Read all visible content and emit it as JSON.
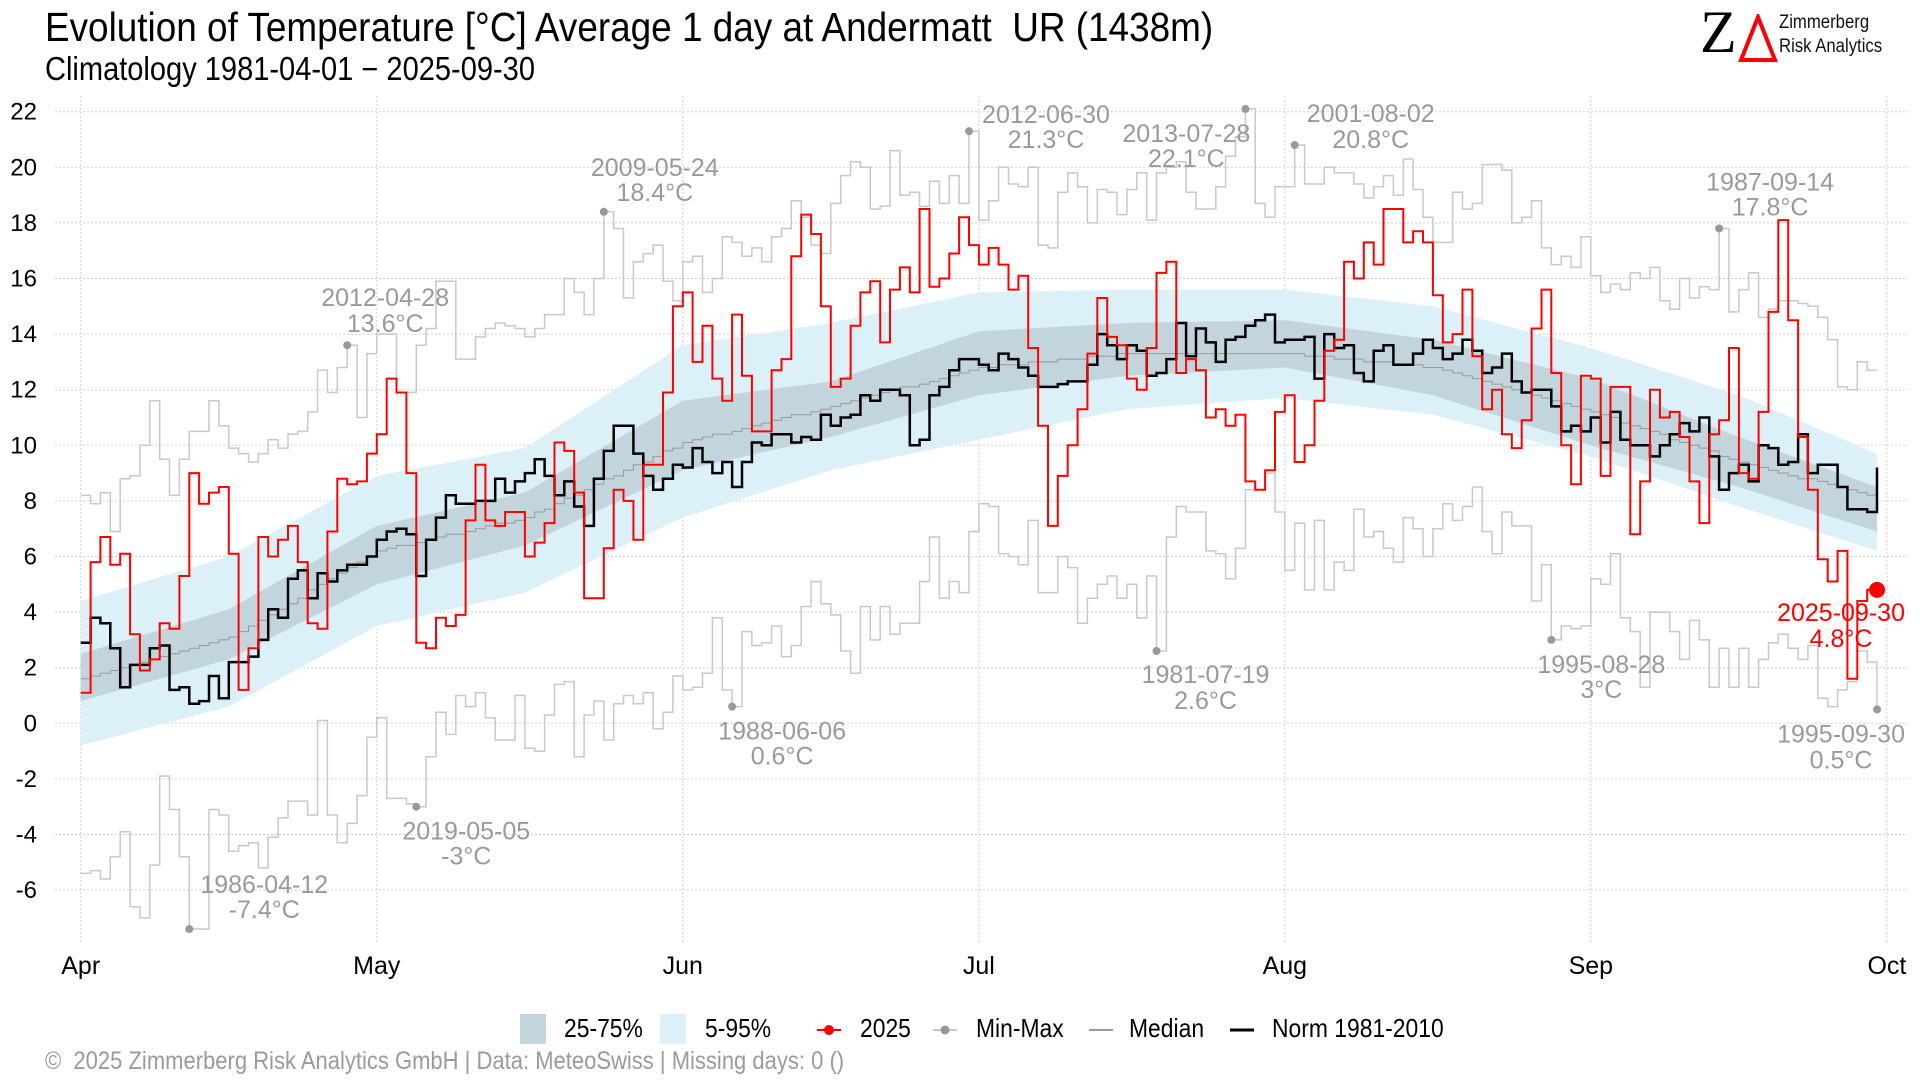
{
  "header": {
    "title": "Evolution of Temperature [°C] Average 1 day at Andermatt  UR (1438m)",
    "subtitle": "Climatology 1981-04-01 − 2025-09-30"
  },
  "logo": {
    "mark_z": "Z",
    "mark_delta": "Δ",
    "line1": "Zimmerberg",
    "line2": "Risk Analytics"
  },
  "legend": {
    "iqr": "25-75%",
    "p5_95": "5-95%",
    "current": "2025",
    "minmax": "Min-Max",
    "median": "Median",
    "norm": "Norm 1981-2010"
  },
  "footer": "©  2025 Zimmerberg Risk Analytics GmbH | Data: MeteoSwiss | Missing days: 0 ()",
  "colors": {
    "current": "#ff0000",
    "norm": "#000000",
    "minmax": "#c8c8c8",
    "minmax_dot": "#999999",
    "median": "#999999",
    "band_iqr": "#c3d5dc",
    "band_90": "#dcf0f8"
  },
  "chart_data": {
    "type": "line",
    "title": "Evolution of Temperature [°C] Average 1 day at Andermatt  UR (1438m)",
    "xlabel": "",
    "ylabel": "",
    "x_start": "04-01",
    "x_end": "09-30",
    "x_ticks": [
      "Apr",
      "May",
      "Jun",
      "Jul",
      "Aug",
      "Sep",
      "Oct"
    ],
    "y_ticks": [
      22,
      20,
      18,
      16,
      14,
      12,
      10,
      8,
      6,
      4,
      2,
      0,
      -2,
      -4,
      -6
    ],
    "ylim": [
      -7.9,
      22.6
    ],
    "grid": true,
    "legend_position": "bottom",
    "series": [
      {
        "name": "Max",
        "values": [
          8.2,
          7.9,
          8.3,
          6.9,
          8.8,
          8.9,
          10.0,
          11.6,
          9.5,
          8.2,
          9.5,
          10.5,
          10.5,
          11.6,
          10.7,
          9.9,
          9.7,
          9.4,
          9.7,
          10.2,
          9.9,
          10.4,
          10.5,
          11.2,
          12.7,
          11.9,
          12.8,
          13.6,
          11.0,
          13.3,
          14.0,
          14.0,
          11.9,
          11.9,
          13.6,
          14.2,
          15.9,
          15.9,
          13.1,
          13.1,
          13.9,
          14.2,
          14.4,
          14.3,
          14.2,
          13.9,
          14.2,
          14.7,
          14.7,
          16.0,
          15.5,
          14.7,
          16.0,
          18.4,
          17.8,
          15.3,
          16.6,
          16.9,
          17.2,
          15.9,
          15.2,
          16.6,
          16.8,
          15.5,
          16.0,
          17.5,
          17.3,
          16.8,
          17.1,
          16.6,
          17.5,
          17.8,
          18.8,
          18.2,
          17.2,
          16.9,
          18.7,
          19.7,
          20.2,
          20.0,
          18.5,
          18.6,
          20.6,
          19.0,
          19.1,
          18.6,
          19.5,
          18.7,
          19.7,
          18.7,
          21.3,
          18.1,
          18.8,
          20.0,
          19.4,
          19.3,
          20.0,
          17.2,
          17.1,
          19.1,
          19.8,
          19.3,
          18.0,
          19.2,
          19.1,
          18.3,
          19.2,
          19.8,
          18.1,
          19.8,
          20.0,
          20.2,
          19.1,
          18.5,
          18.5,
          19.3,
          20.4,
          21.1,
          22.1,
          18.7,
          18.2,
          19.3,
          19.3,
          20.8,
          19.4,
          19.4,
          20.0,
          19.8,
          19.8,
          19.4,
          18.9,
          19.3,
          19.7,
          19.0,
          20.3,
          19.2,
          18.2,
          17.3,
          17.3,
          19.1,
          18.5,
          18.7,
          20.1,
          20.1,
          19.9,
          18.0,
          18.2,
          18.8,
          17.1,
          16.5,
          16.8,
          16.4,
          17.5,
          16.1,
          15.5,
          15.8,
          15.6,
          16.2,
          16.0,
          16.4,
          15.2,
          14.9,
          16.0,
          15.3,
          15.7,
          15.6,
          17.8,
          14.8,
          15.6,
          16.2,
          14.6,
          14.9,
          15.2,
          15.2,
          15.1,
          15.0,
          14.6,
          13.8,
          12.1,
          12.0,
          13.0,
          12.7,
          12.7
        ]
      },
      {
        "name": "Min",
        "values": [
          -5.4,
          -5.3,
          -5.6,
          -4.8,
          -3.9,
          -6.6,
          -7.0,
          -5.1,
          -1.9,
          -3.1,
          -4.8,
          -7.4,
          -7.4,
          -3.1,
          -3.3,
          -4.6,
          -4.4,
          -4.3,
          -5.2,
          -4.1,
          -3.4,
          -2.8,
          -2.8,
          -3.3,
          0.1,
          -3.3,
          -4.3,
          -3.6,
          -2.6,
          -0.5,
          0.2,
          -2.7,
          -2.7,
          -2.9,
          -3.0,
          -1.2,
          0.4,
          -0.4,
          1.0,
          0.6,
          1.1,
          0.2,
          -0.6,
          -0.6,
          1.0,
          -0.9,
          -1.0,
          0.3,
          1.4,
          1.5,
          -1.2,
          0.3,
          0.8,
          -0.6,
          0.7,
          1.0,
          0.7,
          1.1,
          -0.2,
          0.4,
          1.7,
          1.2,
          1.3,
          1.8,
          3.8,
          1.2,
          0.6,
          3.3,
          2.8,
          2.9,
          3.5,
          2.4,
          2.8,
          4.2,
          5.1,
          4.3,
          3.9,
          2.6,
          1.8,
          4.2,
          3.0,
          4.2,
          3.2,
          3.6,
          3.6,
          5.1,
          6.7,
          4.5,
          5.1,
          4.7,
          6.9,
          7.9,
          7.8,
          6.1,
          6.0,
          5.7,
          7.3,
          4.7,
          4.7,
          6.0,
          5.6,
          3.6,
          4.5,
          5.0,
          5.3,
          4.5,
          5.0,
          3.8,
          5.3,
          2.6,
          6.7,
          7.8,
          7.6,
          7.6,
          6.2,
          6.1,
          5.2,
          6.3,
          8.4,
          8.4,
          9.0,
          7.6,
          5.5,
          7.2,
          4.8,
          7.3,
          4.8,
          5.8,
          5.5,
          7.7,
          6.7,
          6.9,
          6.3,
          5.8,
          7.4,
          7.0,
          6.0,
          7.0,
          7.9,
          7.3,
          7.8,
          8.5,
          6.9,
          6.1,
          7.6,
          7.1,
          7.1,
          4.4,
          5.7,
          3.0,
          3.5,
          3.4,
          3.5,
          5.2,
          5.0,
          6.1,
          3.8,
          3.3,
          1.3,
          4.0,
          4.0,
          3.3,
          2.3,
          3.7,
          3.0,
          1.3,
          2.7,
          1.3,
          2.7,
          1.3,
          2.3,
          2.9,
          3.2,
          2.7,
          2.3,
          2.8,
          0.9,
          0.6,
          1.2,
          1.5,
          2.6,
          2.2,
          0.5
        ]
      },
      {
        "name": "Norm 1981-2010",
        "values": [
          2.9,
          3.8,
          3.6,
          2.7,
          1.3,
          2.1,
          2.1,
          2.7,
          2.8,
          1.2,
          1.3,
          0.7,
          0.8,
          1.7,
          0.9,
          2.2,
          2.2,
          2.4,
          3.0,
          4.1,
          3.8,
          5.2,
          5.5,
          4.5,
          5.4,
          5.1,
          5.5,
          5.7,
          5.7,
          6.0,
          6.6,
          6.9,
          7.0,
          6.8,
          5.3,
          6.6,
          7.4,
          8.2,
          7.9,
          7.9,
          8.0,
          8.0,
          8.8,
          8.3,
          8.7,
          9.0,
          9.5,
          8.9,
          8.2,
          8.7,
          7.8,
          7.1,
          8.8,
          9.8,
          10.7,
          10.7,
          9.7,
          8.9,
          8.4,
          8.8,
          9.3,
          9.2,
          9.9,
          9.4,
          9.0,
          9.4,
          8.5,
          9.4,
          10.1,
          10.0,
          10.4,
          10.4,
          10.1,
          10.3,
          10.2,
          11.1,
          10.7,
          11.0,
          11.1,
          11.8,
          11.6,
          12.0,
          12.0,
          11.8,
          10.0,
          10.2,
          11.8,
          12.1,
          12.7,
          13.1,
          13.1,
          12.9,
          12.7,
          13.3,
          13.1,
          12.8,
          12.5,
          12.1,
          12.1,
          12.2,
          12.3,
          12.3,
          12.9,
          14.0,
          13.6,
          13.1,
          13.6,
          13.4,
          12.5,
          12.6,
          13.1,
          14.4,
          13.2,
          14.2,
          13.7,
          13.0,
          13.8,
          13.9,
          14.3,
          14.5,
          14.7,
          13.7,
          13.8,
          13.8,
          13.9,
          12.4,
          14.0,
          13.5,
          13.6,
          12.6,
          12.3,
          13.4,
          13.6,
          12.9,
          12.9,
          13.3,
          13.8,
          13.5,
          13.1,
          13.3,
          13.8,
          13.4,
          12.6,
          12.8,
          13.3,
          12.3,
          11.9,
          12.0,
          12.0,
          11.4,
          10.5,
          10.7,
          10.5,
          11.0,
          10.1,
          11.2,
          10.2,
          10.0,
          10.0,
          9.6,
          10.0,
          10.4,
          10.8,
          10.5,
          11.0,
          9.6,
          8.4,
          9.0,
          9.3,
          8.7,
          10.0,
          9.9,
          9.3,
          9.4,
          10.4,
          9.0,
          9.3,
          9.3,
          8.5,
          7.7,
          7.7,
          7.6,
          9.2
        ]
      },
      {
        "name": "2025",
        "values": [
          1.1,
          5.8,
          6.7,
          5.7,
          6.1,
          3.2,
          1.9,
          2.3,
          3.6,
          3.4,
          5.3,
          9.0,
          7.9,
          8.3,
          8.5,
          6.1,
          1.2,
          2.7,
          6.7,
          6.0,
          6.6,
          7.1,
          5.8,
          3.6,
          3.4,
          6.9,
          8.8,
          8.6,
          8.7,
          9.7,
          10.4,
          12.4,
          11.9,
          9.0,
          2.9,
          2.7,
          3.8,
          3.5,
          3.9,
          7.3,
          9.3,
          7.3,
          7.1,
          7.6,
          7.6,
          6.0,
          6.5,
          7.2,
          10.1,
          9.8,
          8.3,
          4.5,
          4.5,
          6.3,
          8.4,
          8.0,
          6.6,
          9.3,
          9.3,
          11.9,
          15.0,
          15.5,
          13.0,
          14.3,
          12.4,
          11.6,
          14.7,
          12.5,
          10.5,
          10.5,
          12.7,
          13.1,
          16.8,
          18.3,
          17.6,
          15.0,
          12.1,
          12.4,
          14.3,
          15.5,
          15.9,
          13.7,
          15.6,
          16.4,
          15.5,
          18.5,
          15.7,
          16.0,
          16.9,
          18.2,
          17.2,
          16.5,
          17.1,
          16.5,
          15.6,
          16.1,
          13.5,
          10.7,
          7.1,
          8.9,
          10.0,
          11.3,
          13.3,
          15.3,
          13.9,
          13.6,
          12.4,
          12.0,
          13.5,
          16.2,
          16.6,
          12.6,
          13.1,
          12.7,
          11.0,
          11.3,
          10.7,
          11.1,
          8.7,
          8.4,
          9.1,
          11.2,
          11.8,
          9.4,
          10.0,
          11.6,
          13.4,
          13.8,
          16.6,
          16.0,
          17.3,
          16.5,
          18.5,
          18.5,
          17.3,
          17.7,
          17.3,
          15.4,
          13.7,
          14.0,
          15.6,
          13.2,
          11.3,
          12.0,
          10.4,
          9.9,
          10.9,
          14.2,
          15.6,
          12.6,
          10.0,
          8.6,
          12.5,
          12.4,
          8.9,
          12.1,
          12.1,
          6.8,
          8.7,
          12.0,
          11.0,
          11.2,
          10.3,
          8.7,
          7.2,
          10.4,
          10.9,
          13.5,
          9.0,
          8.8,
          11.2,
          14.8,
          18.1,
          14.5,
          10.3,
          8.4,
          5.9,
          5.1,
          6.2,
          1.6,
          4.4,
          4.8,
          4.8
        ]
      }
    ],
    "bands": {
      "anchor_dates": [
        "04-01",
        "04-16",
        "05-01",
        "05-16",
        "06-01",
        "06-16",
        "07-01",
        "07-16",
        "08-01",
        "08-16",
        "09-01",
        "09-16",
        "09-30"
      ],
      "p5": [
        -0.8,
        0.6,
        3.5,
        4.7,
        7.4,
        9.1,
        10.2,
        11.3,
        11.7,
        11.1,
        9.6,
        7.8,
        6.2
      ],
      "p25": [
        0.8,
        2.3,
        5.0,
        6.4,
        9.1,
        10.3,
        11.8,
        12.5,
        12.8,
        11.8,
        10.0,
        8.5,
        6.9
      ],
      "p75": [
        2.5,
        4.1,
        7.1,
        8.3,
        11.6,
        12.3,
        14.1,
        14.4,
        14.5,
        13.8,
        12.4,
        10.3,
        8.5
      ],
      "p95": [
        4.4,
        6.0,
        8.9,
        9.9,
        13.6,
        14.4,
        15.5,
        15.6,
        15.6,
        15.0,
        13.5,
        11.8,
        9.7
      ],
      "median": [
        1.6,
        3.1,
        6.2,
        7.4,
        10.1,
        11.4,
        12.8,
        13.3,
        13.3,
        12.8,
        11.2,
        9.4,
        8.1
      ]
    },
    "annotations": [
      {
        "kind": "max",
        "date": "2012-04-28",
        "value": 13.6,
        "label": "13.6°C"
      },
      {
        "kind": "max",
        "date": "2009-05-24",
        "value": 18.4,
        "label": "18.4°C"
      },
      {
        "kind": "max",
        "date": "2012-06-30",
        "value": 21.3,
        "label": "21.3°C"
      },
      {
        "kind": "max",
        "date": "2013-07-28",
        "value": 22.1,
        "label": "22.1°C"
      },
      {
        "kind": "max",
        "date": "2001-08-02",
        "value": 20.8,
        "label": "20.8°C"
      },
      {
        "kind": "max",
        "date": "1987-09-14",
        "value": 17.8,
        "label": "17.8°C"
      },
      {
        "kind": "min",
        "date": "1986-04-12",
        "value": -7.4,
        "label": "-7.4°C"
      },
      {
        "kind": "min",
        "date": "2019-05-05",
        "value": -3,
        "label": "-3°C"
      },
      {
        "kind": "min",
        "date": "1988-06-06",
        "value": 0.6,
        "label": "0.6°C"
      },
      {
        "kind": "min",
        "date": "1981-07-19",
        "value": 2.6,
        "label": "2.6°C"
      },
      {
        "kind": "min",
        "date": "1995-08-28",
        "value": 3,
        "label": "3°C"
      },
      {
        "kind": "min",
        "date": "1995-09-30",
        "value": 0.5,
        "label": "0.5°C"
      },
      {
        "kind": "current",
        "date": "2025-09-30",
        "value": 4.8,
        "label": "4.8°C"
      }
    ]
  }
}
